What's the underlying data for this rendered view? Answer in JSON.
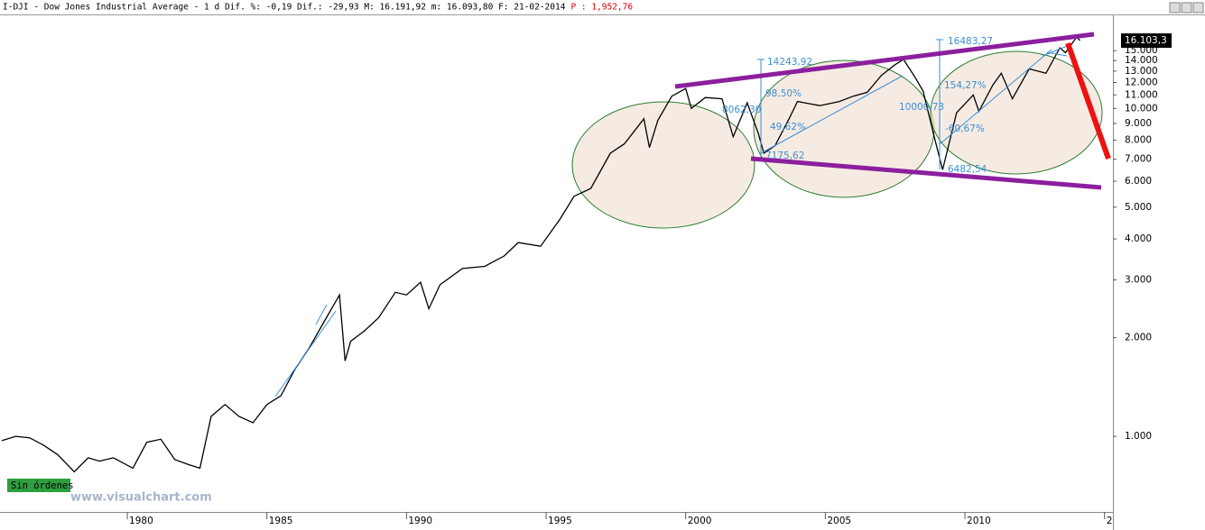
{
  "chart_data": {
    "type": "line",
    "title": "I-DJI - Dow Jones Industrial Average -  1 d Dif. %: -0,19 Dif.: -29,93 M: 16.191,92 m: 16.093,80 F: 21-02-2014",
    "subtitle": "P : 1,952,76",
    "log_scale": true,
    "grid": false,
    "color": "#000000",
    "x": [
      1975.5,
      1976.0,
      1976.5,
      1977.0,
      1977.5,
      1978.1,
      1978.6,
      1979.0,
      1979.5,
      1980.2,
      1980.7,
      1981.2,
      1981.7,
      1982.2,
      1982.6,
      1983.0,
      1983.5,
      1984.0,
      1984.5,
      1985.0,
      1985.5,
      1986.0,
      1986.5,
      1987.0,
      1987.6,
      1987.8,
      1988.0,
      1988.5,
      1989.0,
      1989.6,
      1990.0,
      1990.5,
      1990.8,
      1991.2,
      1992.0,
      1992.8,
      1993.5,
      1994.0,
      1994.8,
      1995.5,
      1996.0,
      1996.6,
      1997.3,
      1997.8,
      1998.5,
      1998.7,
      1999.0,
      1999.5,
      2000.0,
      2000.2,
      2000.7,
      2001.3,
      2001.7,
      2002.2,
      2002.6,
      2002.8,
      2003.2,
      2003.7,
      2004.0,
      2004.8,
      2005.5,
      2006.0,
      2006.5,
      2007.0,
      2007.5,
      2007.8,
      2008.2,
      2008.5,
      2008.9,
      2009.2,
      2009.7,
      2010.3,
      2010.5,
      2011.0,
      2011.3,
      2011.7,
      2012.3,
      2012.9,
      2013.4,
      2013.6,
      2014.0,
      2014.12
    ],
    "values": [
      970,
      1000,
      990,
      940,
      880,
      780,
      860,
      840,
      860,
      800,
      960,
      980,
      850,
      820,
      800,
      1150,
      1250,
      1150,
      1100,
      1250,
      1330,
      1600,
      1850,
      2200,
      2700,
      1700,
      1950,
      2100,
      2300,
      2750,
      2700,
      2950,
      2450,
      2900,
      3250,
      3300,
      3550,
      3900,
      3800,
      4600,
      5400,
      5700,
      7300,
      7800,
      9300,
      7600,
      9200,
      10900,
      11500,
      10000,
      10800,
      10700,
      8200,
      10400,
      8400,
      7300,
      7700,
      9300,
      10500,
      10200,
      10500,
      10900,
      11200,
      12600,
      13600,
      14100,
      12500,
      11300,
      8200,
      6500,
      9700,
      11000,
      9800,
      11800,
      12800,
      10700,
      13200,
      12800,
      15300,
      14800,
      16500,
      16103.3
    ],
    "xlim": [
      1975.44,
      2015.3
    ],
    "ylim": [
      588,
      19230
    ],
    "xticks": [
      1980,
      1985,
      1990,
      1995,
      2000,
      2005,
      2010,
      {
        "value": 2015,
        "label": "2"
      }
    ],
    "yticks": [
      {
        "value": 1000,
        "label": "1.000"
      },
      {
        "value": 2000,
        "label": "2.000"
      },
      {
        "value": 3000,
        "label": "3.000"
      },
      {
        "value": 4000,
        "label": "4.000"
      },
      {
        "value": 5000,
        "label": "5.000"
      },
      {
        "value": 6000,
        "label": "6.000"
      },
      {
        "value": 7000,
        "label": "7.000"
      },
      {
        "value": 8000,
        "label": "8.000"
      },
      {
        "value": 9000,
        "label": "9.000"
      },
      {
        "value": 10000,
        "label": "10.000"
      },
      {
        "value": 11000,
        "label": "11.000"
      },
      {
        "value": 12000,
        "label": "12.000"
      },
      {
        "value": 13000,
        "label": "13.000"
      },
      {
        "value": 14000,
        "label": "14.000"
      },
      {
        "value": 15000,
        "label": "15.000"
      }
    ],
    "price_label": {
      "value": 16103.3,
      "label": "16.103,3"
    },
    "annotations": [
      "14243,92",
      "98,50%",
      "8062,30",
      "49,62%",
      "7175,62",
      "16483,27",
      "154,27%",
      "10000,73",
      "-60,67%",
      "6482,54"
    ],
    "badge": "Sin órdenes",
    "watermark": "www.visualchart.com"
  }
}
